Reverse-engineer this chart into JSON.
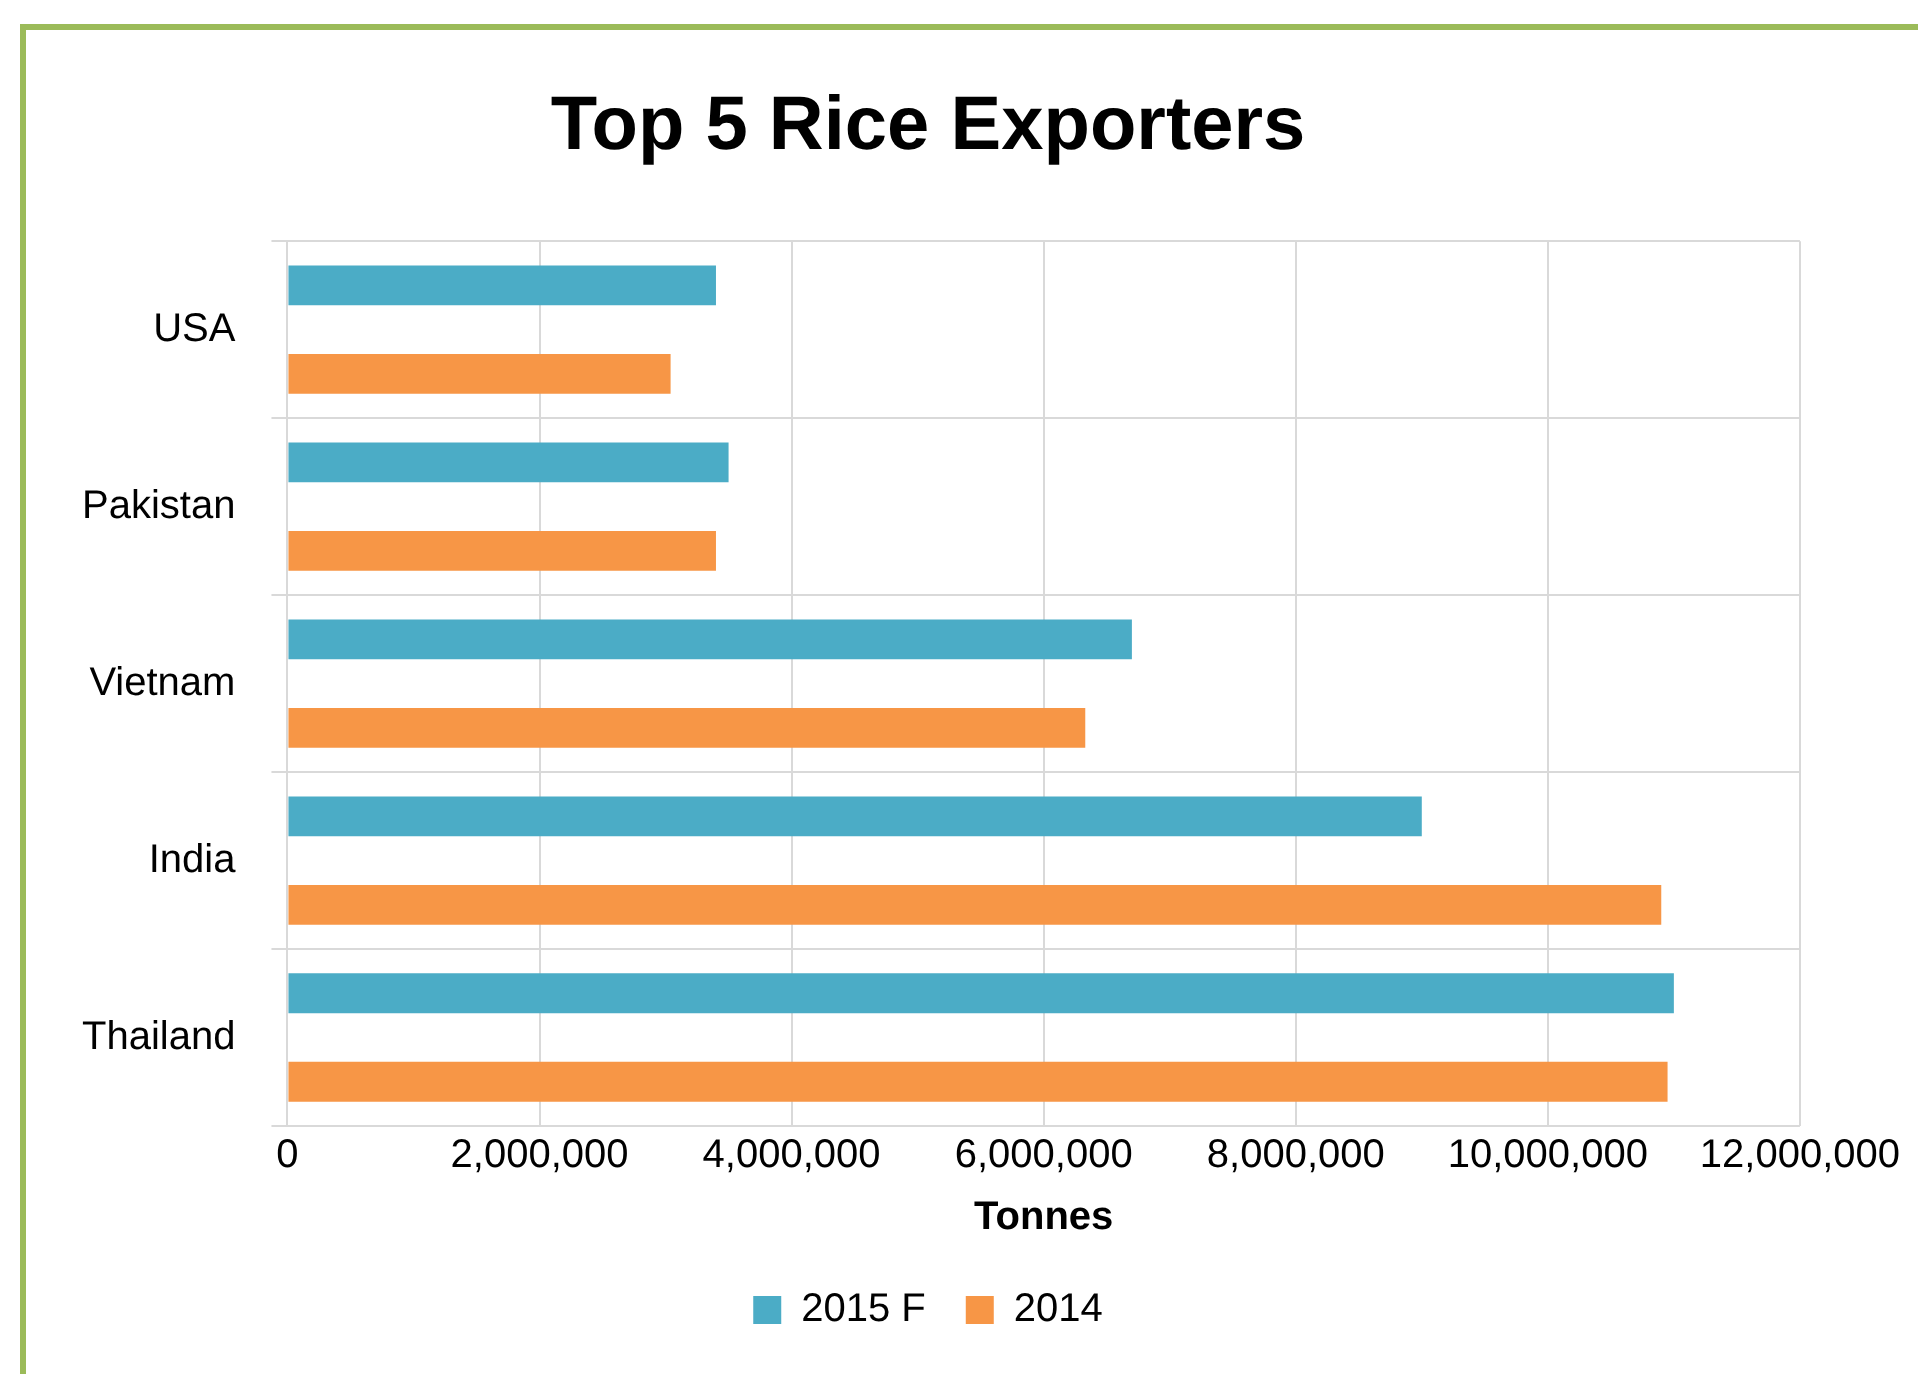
{
  "chart_data": {
    "type": "bar",
    "orientation": "horizontal",
    "title": "Top 5 Rice Exporters",
    "xlabel": "Tonnes",
    "categories": [
      "USA",
      "Pakistan",
      "Vietnam",
      "India",
      "Thailand"
    ],
    "series": [
      {
        "name": "2015 F",
        "color": "#4bacc6",
        "values": [
          3400000,
          3500000,
          6700000,
          9000000,
          11000000
        ]
      },
      {
        "name": "2014",
        "color": "#f79646",
        "values": [
          3040000,
          3400000,
          6330000,
          10900000,
          10950000
        ]
      }
    ],
    "xlim": [
      0,
      12000000
    ],
    "xticks": [
      {
        "value": 0,
        "label": "0"
      },
      {
        "value": 2000000,
        "label": "2,000,000"
      },
      {
        "value": 4000000,
        "label": "4,000,000"
      },
      {
        "value": 6000000,
        "label": "6,000,000"
      },
      {
        "value": 8000000,
        "label": "8,000,000"
      },
      {
        "value": 10000000,
        "label": "10,000,000"
      },
      {
        "value": 12000000,
        "label": "12,000,000"
      }
    ],
    "grid": true,
    "legend": "bottom"
  }
}
